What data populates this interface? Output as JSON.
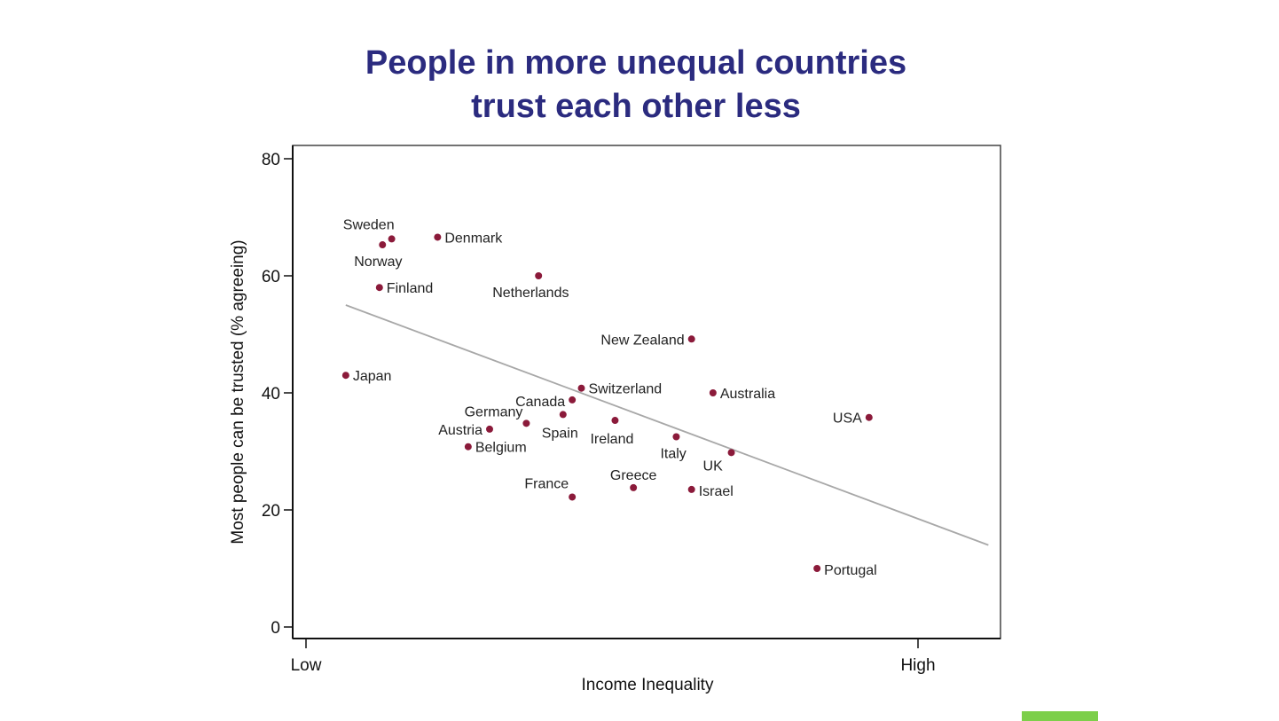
{
  "title_lines": [
    "People in more unequal countries",
    "trust each other less"
  ],
  "accent_colors": {
    "title": "#2b2b7f",
    "points": "#8b1a3a",
    "trendline": "#a8a8a8",
    "green_bar": "#7ccf4a"
  },
  "chart_data": {
    "type": "scatter",
    "title": "People in more unequal countries trust each other less",
    "xlabel": "Income Inequality",
    "ylabel": "Most people can be trusted (% agreeing)",
    "x_tick_labels": [
      "Low",
      "High"
    ],
    "x_range": [
      "Low",
      "High"
    ],
    "ylim": [
      0,
      80
    ],
    "yticks": [
      0,
      20,
      40,
      60,
      80
    ],
    "grid": false,
    "legend": "none",
    "points": [
      {
        "label": "Sweden",
        "x": 0.14,
        "y": 66.3
      },
      {
        "label": "Norway",
        "x": 0.125,
        "y": 65.3
      },
      {
        "label": "Denmark",
        "x": 0.215,
        "y": 66.6
      },
      {
        "label": "Finland",
        "x": 0.12,
        "y": 58.0
      },
      {
        "label": "Netherlands",
        "x": 0.38,
        "y": 60.0
      },
      {
        "label": "New Zealand",
        "x": 0.63,
        "y": 49.2
      },
      {
        "label": "Japan",
        "x": 0.065,
        "y": 43.0
      },
      {
        "label": "Switzerland",
        "x": 0.45,
        "y": 40.8
      },
      {
        "label": "Australia",
        "x": 0.665,
        "y": 40.0
      },
      {
        "label": "USA",
        "x": 0.92,
        "y": 35.8
      },
      {
        "label": "Canada",
        "x": 0.435,
        "y": 38.8
      },
      {
        "label": "Germany",
        "x": 0.36,
        "y": 34.8
      },
      {
        "label": "Spain",
        "x": 0.42,
        "y": 36.3
      },
      {
        "label": "Ireland",
        "x": 0.505,
        "y": 35.3
      },
      {
        "label": "Austria",
        "x": 0.3,
        "y": 33.8
      },
      {
        "label": "Belgium",
        "x": 0.265,
        "y": 30.8
      },
      {
        "label": "Italy",
        "x": 0.605,
        "y": 32.5
      },
      {
        "label": "UK",
        "x": 0.695,
        "y": 29.8
      },
      {
        "label": "Greece",
        "x": 0.535,
        "y": 23.8
      },
      {
        "label": "Israel",
        "x": 0.63,
        "y": 23.5
      },
      {
        "label": "France",
        "x": 0.435,
        "y": 22.2
      },
      {
        "label": "Portugal",
        "x": 0.835,
        "y": 10.0
      }
    ],
    "trendline": {
      "x": [
        0.065,
        1.115
      ],
      "y": [
        55.0,
        14.0
      ]
    }
  }
}
